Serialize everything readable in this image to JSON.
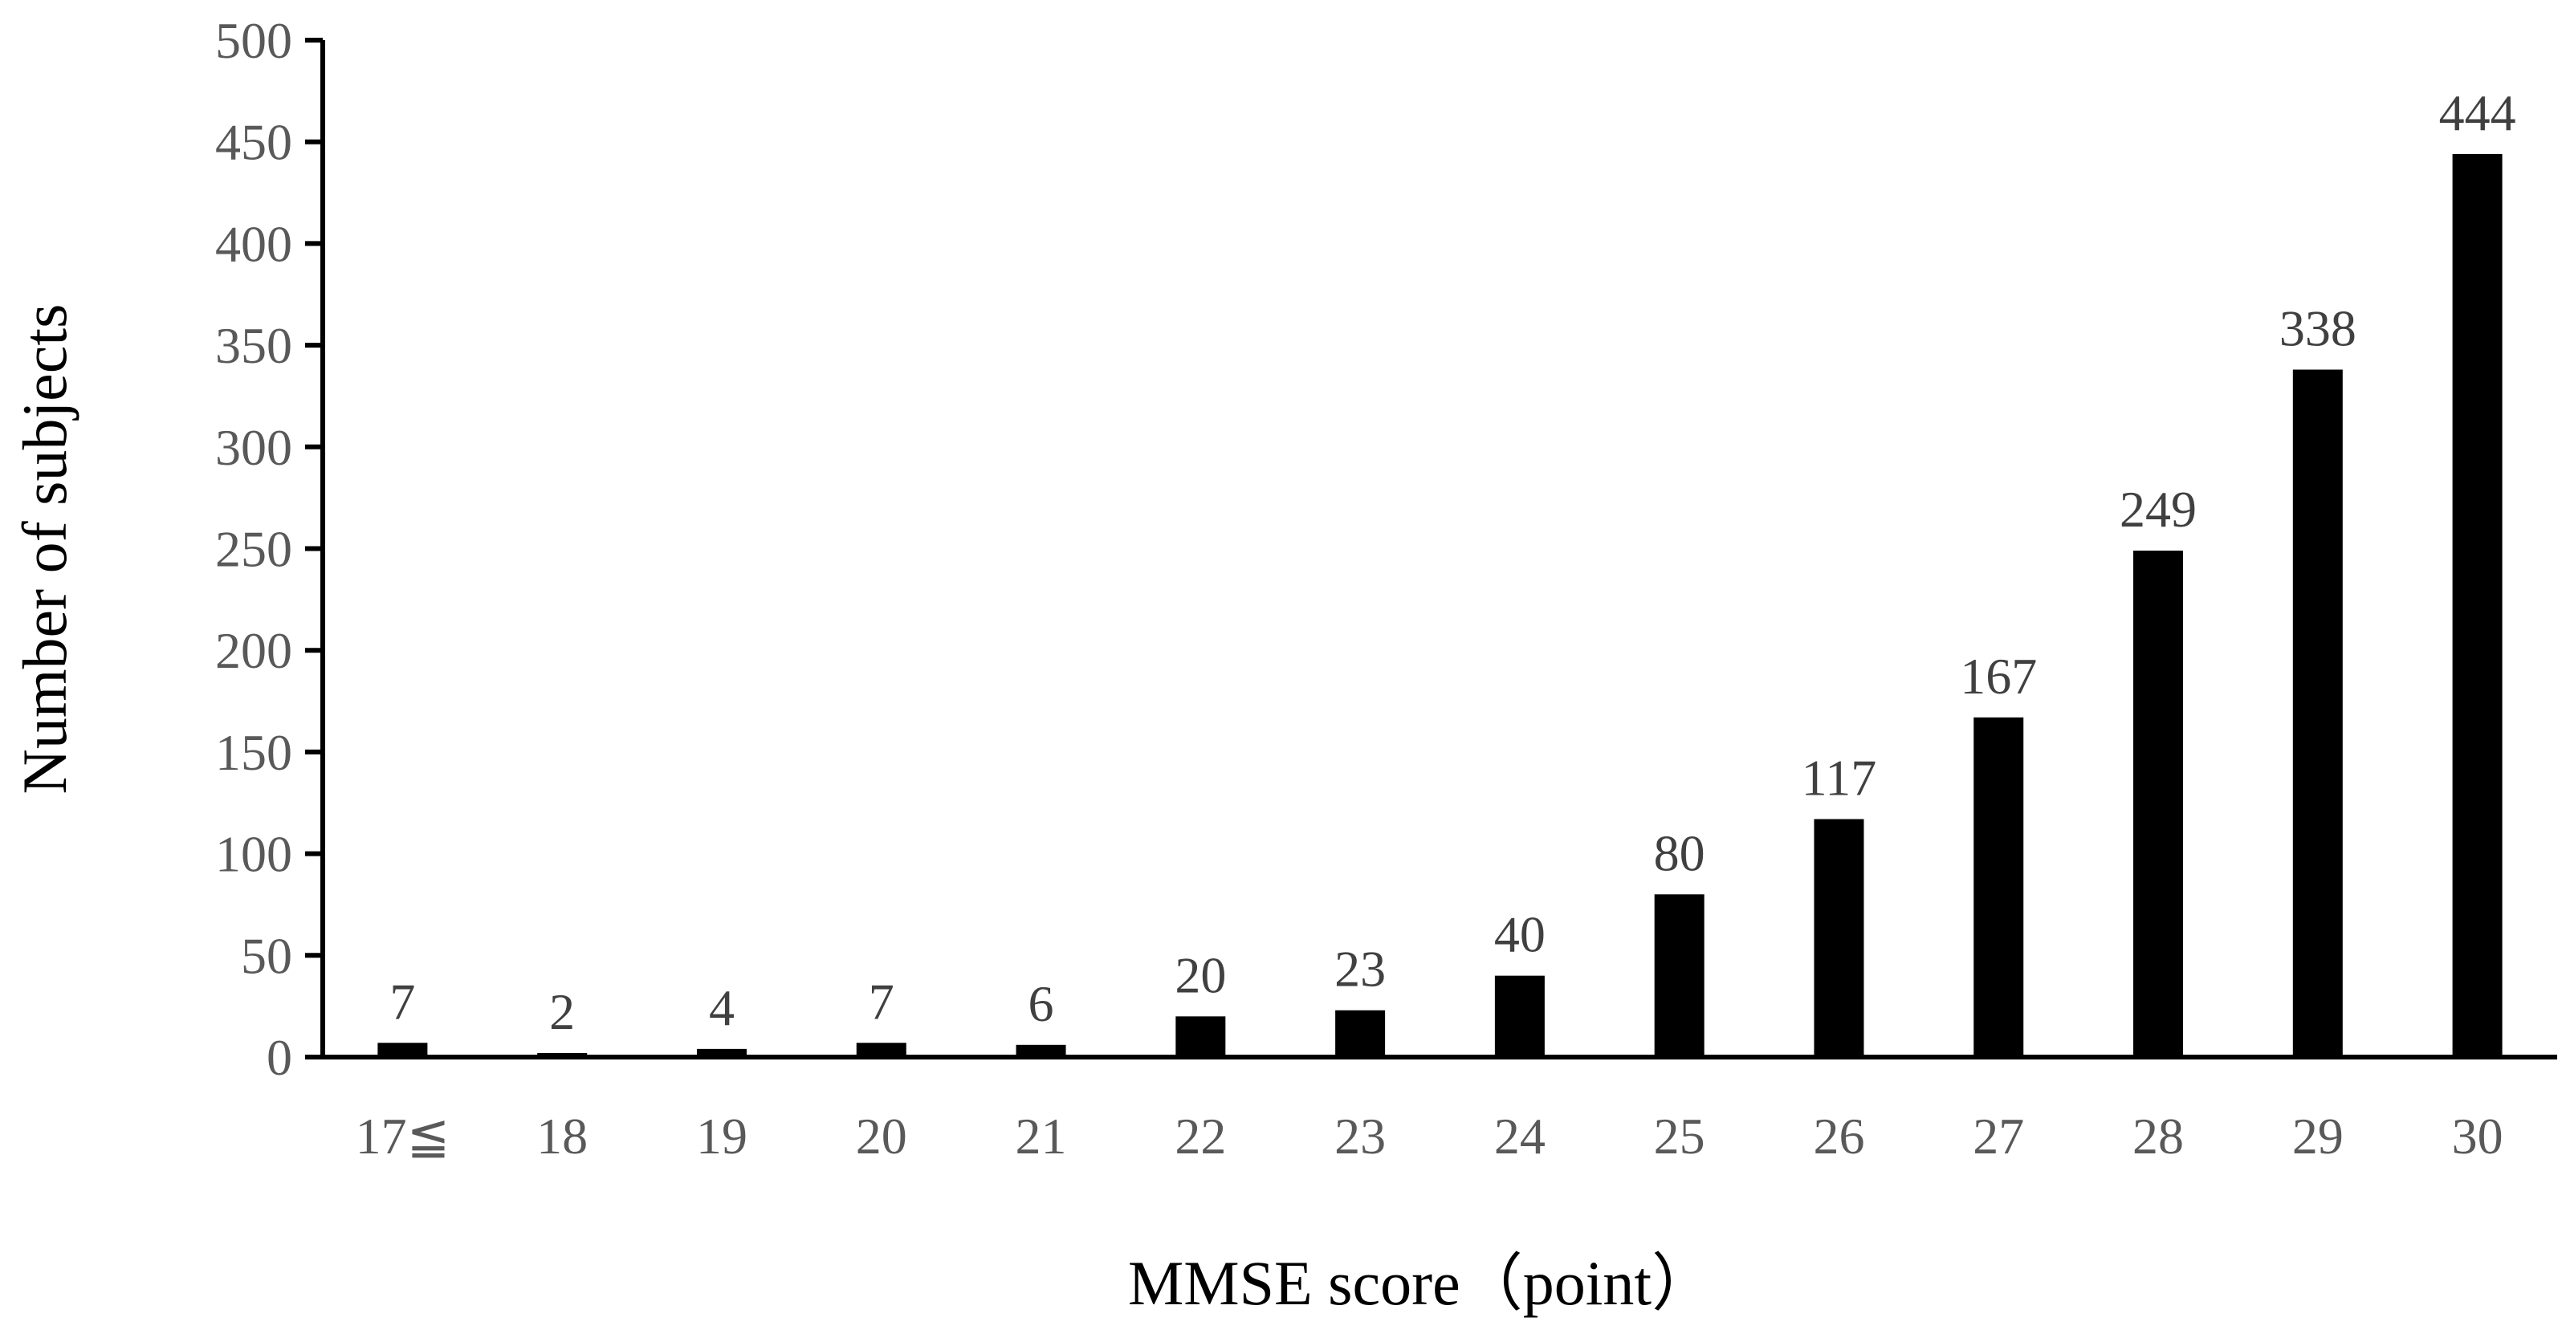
{
  "chart_data": {
    "type": "bar",
    "title": "",
    "xlabel": "MMSE score（point）",
    "ylabel": "Number of subjects",
    "categories": [
      "17≦",
      "18",
      "19",
      "20",
      "21",
      "22",
      "23",
      "24",
      "25",
      "26",
      "27",
      "28",
      "29",
      "30"
    ],
    "values": [
      7,
      2,
      4,
      7,
      6,
      20,
      23,
      40,
      80,
      117,
      167,
      249,
      338,
      444
    ],
    "data_labels": [
      "7",
      "2",
      "4",
      "7",
      "6",
      "20",
      "23",
      "40",
      "80",
      "117",
      "167",
      "249",
      "338",
      "444"
    ],
    "ylim": [
      0,
      500
    ],
    "yticks": [
      0,
      50,
      100,
      150,
      200,
      250,
      300,
      350,
      400,
      450,
      500
    ],
    "ytick_labels": [
      "0",
      "50",
      "100",
      "150",
      "200",
      "250",
      "300",
      "350",
      "400",
      "450",
      "500"
    ],
    "grid": false,
    "legend": "none",
    "bar_color": "#000000",
    "tick_label_color": "#595959",
    "data_label_color": "#404040"
  }
}
